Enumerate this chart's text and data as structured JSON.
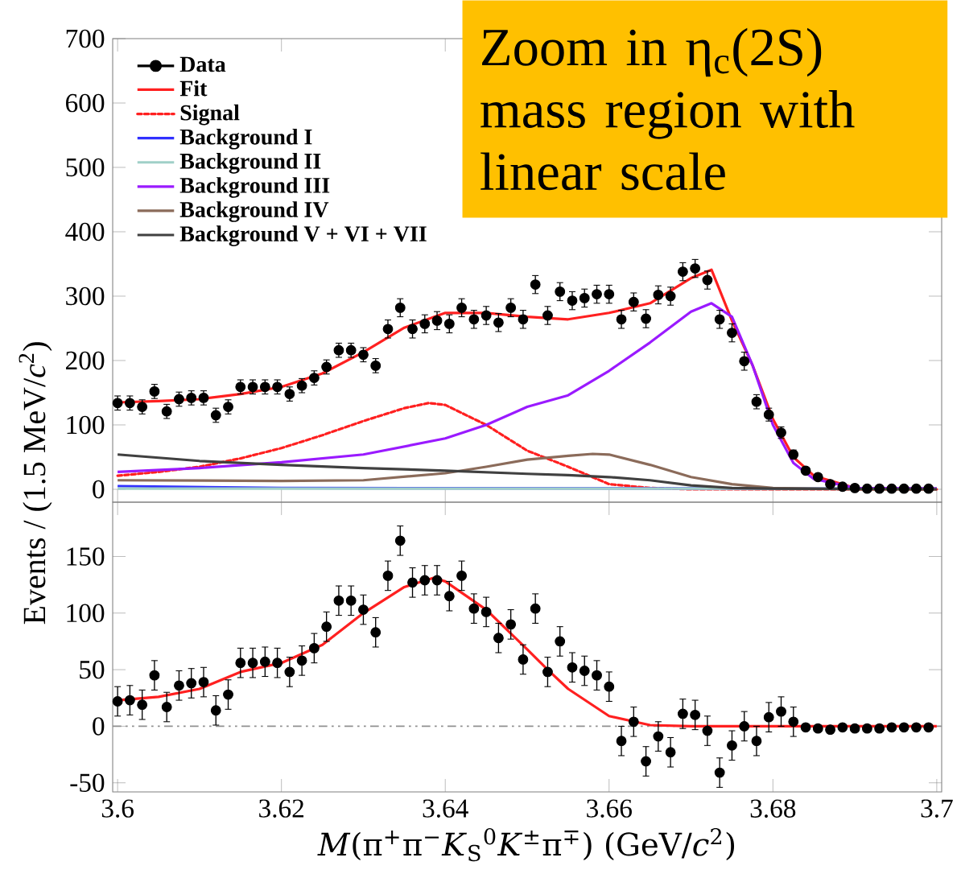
{
  "chart_data": [
    {
      "type": "line",
      "ylabel": "Events / (1.5 MeV/*c*$^{2}$)",
      "annotations": [
        "Zoom in η$_{c}$(2S) mass region with linear scale"
      ],
      "xlim": [
        3.5994,
        3.7006
      ],
      "xticks": [
        3.6,
        3.62,
        3.64,
        3.66,
        3.68,
        3.7
      ],
      "ylim": [
        -20,
        700
      ],
      "yticks": [
        0,
        100,
        200,
        300,
        400,
        500,
        600,
        700
      ],
      "tick_labels": "y",
      "legend": "top left",
      "series": [
        {
          "name": "Data",
          "type": "scatter",
          "marker": "circle",
          "color": "#000000",
          "x": [
            3.6,
            3.6015,
            3.603,
            3.6045,
            3.606,
            3.6075,
            3.609,
            3.6105,
            3.612,
            3.6135,
            3.615,
            3.6165,
            3.618,
            3.6195,
            3.621,
            3.6225,
            3.624,
            3.6255,
            3.627,
            3.6285,
            3.63,
            3.6315,
            3.633,
            3.6345,
            3.636,
            3.6375,
            3.639,
            3.6405,
            3.642,
            3.6435,
            3.645,
            3.6465,
            3.648,
            3.6495,
            3.651,
            3.6525,
            3.654,
            3.6555,
            3.657,
            3.6585,
            3.66,
            3.6615,
            3.663,
            3.6645,
            3.666,
            3.6675,
            3.669,
            3.6705,
            3.672,
            3.6735,
            3.675,
            3.6765,
            3.678,
            3.6795,
            3.681,
            3.6825,
            3.684,
            3.6855,
            3.687,
            3.6885,
            3.69,
            3.6915,
            3.693,
            3.6945,
            3.696,
            3.6975,
            3.699
          ],
          "values": [
            134,
            134,
            128,
            152,
            121,
            140,
            142,
            142,
            115,
            128,
            159,
            159,
            159,
            159,
            148,
            161,
            173,
            190,
            216,
            216,
            209,
            192,
            249,
            282,
            249,
            257,
            262,
            257,
            282,
            264,
            270,
            259,
            282,
            264,
            318,
            270,
            307,
            293,
            297,
            303,
            303,
            264,
            291,
            265,
            302,
            300,
            338,
            343,
            325,
            264,
            243,
            199,
            136,
            116,
            88,
            54,
            29,
            19,
            8,
            4,
            2,
            1,
            1,
            1,
            1,
            1,
            1
          ],
          "errors": [
            11,
            11,
            11,
            11,
            11,
            11,
            11,
            11,
            11,
            11,
            11,
            11,
            11,
            11,
            11,
            11,
            11,
            11,
            11,
            11,
            11,
            11,
            14,
            14,
            14,
            14,
            14,
            14,
            14,
            14,
            14,
            14,
            14,
            14,
            14,
            14,
            14,
            14,
            14,
            14,
            14,
            14,
            14,
            14,
            14,
            14,
            14,
            14,
            14,
            14,
            14,
            14,
            11,
            10,
            9,
            7,
            5,
            4,
            3,
            2,
            1,
            1,
            1,
            1,
            1,
            1,
            1
          ]
        },
        {
          "name": "Fit",
          "color": "#ff2020",
          "x": [
            3.6,
            3.605,
            3.61,
            3.615,
            3.62,
            3.625,
            3.63,
            3.635,
            3.64,
            3.645,
            3.65,
            3.655,
            3.66,
            3.665,
            3.67,
            3.6725,
            3.675,
            3.6775,
            3.68,
            3.6825,
            3.685,
            3.69,
            3.7
          ],
          "values": [
            135,
            137,
            140,
            148,
            159,
            180,
            213,
            251,
            274,
            274,
            268,
            264,
            274,
            289,
            328,
            341,
            262,
            193,
            109,
            50,
            21,
            2,
            1
          ]
        },
        {
          "name": "Signal",
          "color": "#ff2020",
          "line_style": "dashed",
          "x": [
            3.6,
            3.605,
            3.61,
            3.615,
            3.62,
            3.625,
            3.63,
            3.635,
            3.638,
            3.64,
            3.645,
            3.65,
            3.655,
            3.66,
            3.665,
            3.67,
            3.7
          ],
          "values": [
            21,
            27,
            35,
            48,
            64,
            84,
            106,
            126,
            134,
            131,
            100,
            60,
            35,
            8,
            2,
            0,
            0
          ]
        },
        {
          "name": "Background I",
          "color": "#3030ff",
          "x": [
            3.6,
            3.62,
            3.7
          ],
          "values": [
            5,
            2,
            1
          ]
        },
        {
          "name": "Background II",
          "color": "#a0d0c8",
          "x": [
            3.6,
            3.7
          ],
          "values": [
            1,
            1
          ]
        },
        {
          "name": "Background III",
          "color": "#9a1aff",
          "x": [
            3.6,
            3.61,
            3.62,
            3.63,
            3.64,
            3.645,
            3.65,
            3.655,
            3.66,
            3.665,
            3.67,
            3.6725,
            3.675,
            3.6775,
            3.68,
            3.6825,
            3.685,
            3.69,
            3.7
          ],
          "values": [
            27,
            33,
            42,
            54,
            79,
            100,
            128,
            146,
            184,
            228,
            276,
            289,
            268,
            193,
            100,
            41,
            16,
            2,
            1
          ]
        },
        {
          "name": "Background IV",
          "color": "#8b6b5a",
          "x": [
            3.6,
            3.62,
            3.63,
            3.64,
            3.645,
            3.65,
            3.655,
            3.658,
            3.66,
            3.665,
            3.67,
            3.675,
            3.68,
            3.69,
            3.7
          ],
          "values": [
            14,
            13,
            14,
            25,
            35,
            46,
            52,
            55,
            54,
            38,
            19,
            8,
            2,
            0,
            0
          ]
        },
        {
          "name": "Background V + VI + VII",
          "color": "#404040",
          "x": [
            3.6,
            3.61,
            3.62,
            3.63,
            3.64,
            3.65,
            3.655,
            3.66,
            3.665,
            3.67,
            3.675,
            3.68,
            3.7
          ],
          "values": [
            54,
            44,
            38,
            33,
            29,
            24,
            22,
            19,
            14,
            6,
            2,
            1,
            0
          ]
        }
      ]
    },
    {
      "type": "line",
      "xlabel": "*M*(π$^{+}$π$^{−}$*K*$_{S}$$^{0}$*K*$^{±}$π$^{∓}$) (GeV/*c*$^{2}$)",
      "xlim": [
        3.5994,
        3.7006
      ],
      "xticks": [
        3.6,
        3.62,
        3.64,
        3.66,
        3.68,
        3.7
      ],
      "ylim": [
        -58,
        198
      ],
      "yticks": [
        -50,
        0,
        50,
        100,
        150
      ],
      "ref_lines": [
        {
          "axis": "y",
          "value": 0,
          "color": "#909090"
        }
      ],
      "series": [
        {
          "type": "scatter",
          "marker": "circle",
          "color": "#000000",
          "x": [
            3.6,
            3.6015,
            3.603,
            3.6045,
            3.606,
            3.6075,
            3.609,
            3.6105,
            3.612,
            3.6135,
            3.615,
            3.6165,
            3.618,
            3.6195,
            3.621,
            3.6225,
            3.624,
            3.6255,
            3.627,
            3.6285,
            3.63,
            3.6315,
            3.633,
            3.6345,
            3.636,
            3.6375,
            3.639,
            3.6405,
            3.642,
            3.6435,
            3.645,
            3.6465,
            3.648,
            3.6495,
            3.651,
            3.6525,
            3.654,
            3.6555,
            3.657,
            3.6585,
            3.66,
            3.6615,
            3.663,
            3.6645,
            3.666,
            3.6675,
            3.669,
            3.6705,
            3.672,
            3.6735,
            3.675,
            3.6765,
            3.678,
            3.6795,
            3.681,
            3.6825,
            3.684,
            3.6855,
            3.687,
            3.6885,
            3.69,
            3.6915,
            3.693,
            3.6945,
            3.696,
            3.6975,
            3.699
          ],
          "values": [
            22,
            23,
            19,
            45,
            17,
            36,
            38,
            39,
            14,
            28,
            56,
            56,
            57,
            56,
            48,
            58,
            69,
            88,
            111,
            111,
            103,
            83,
            133,
            164,
            127,
            129,
            129,
            115,
            133,
            104,
            101,
            78,
            90,
            59,
            104,
            48,
            75,
            52,
            49,
            45,
            35,
            -13,
            4,
            -31,
            -9,
            -23,
            11,
            10,
            -4,
            -41,
            -17,
            0,
            -13,
            8,
            13,
            4,
            -1,
            -2,
            -3,
            -1,
            -2,
            -2,
            -2,
            -1,
            -1,
            -1,
            -1
          ],
          "errors": [
            13,
            13,
            13,
            13,
            13,
            13,
            13,
            13,
            13,
            13,
            13,
            13,
            13,
            13,
            13,
            13,
            13,
            13,
            13,
            13,
            13,
            13,
            13,
            13,
            13,
            13,
            13,
            13,
            13,
            13,
            13,
            13,
            13,
            13,
            13,
            13,
            13,
            13,
            13,
            13,
            13,
            13,
            13,
            13,
            13,
            13,
            13,
            13,
            13,
            13,
            13,
            13,
            13,
            13,
            13,
            13,
            3,
            3,
            3,
            3,
            3,
            3,
            3,
            3,
            3,
            3,
            3
          ]
        },
        {
          "color": "#ff2020",
          "x": [
            3.6,
            3.605,
            3.61,
            3.615,
            3.62,
            3.625,
            3.63,
            3.635,
            3.6385,
            3.64,
            3.645,
            3.65,
            3.6525,
            3.655,
            3.66,
            3.665,
            3.67,
            3.7
          ],
          "values": [
            23,
            26,
            33,
            48,
            56,
            72,
            100,
            123,
            131,
            128,
            103,
            68,
            50,
            33,
            9,
            1,
            0,
            0
          ]
        }
      ]
    }
  ]
}
